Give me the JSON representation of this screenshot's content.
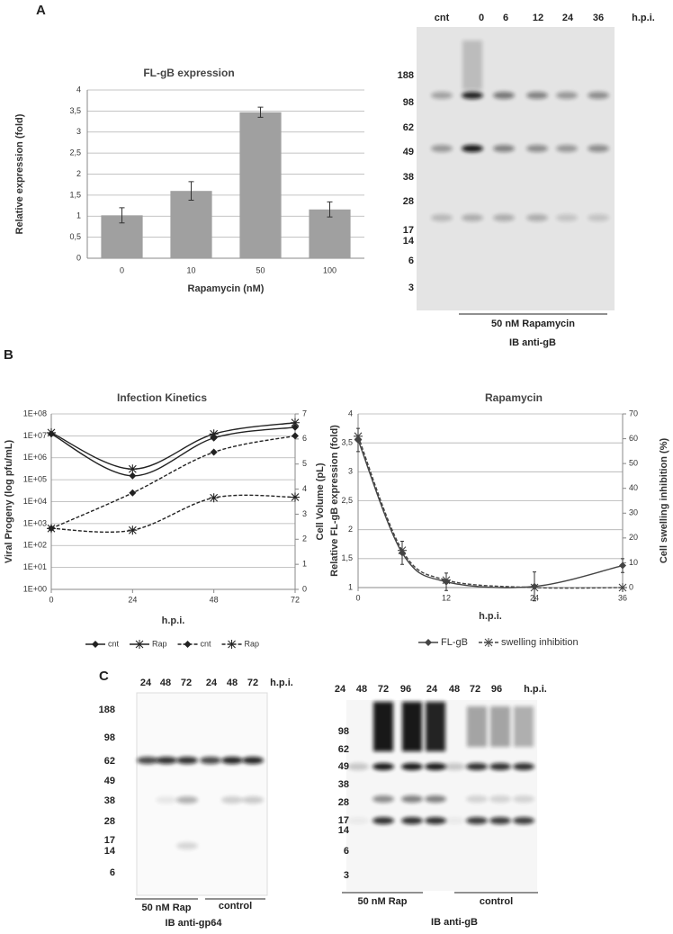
{
  "panel_labels": [
    "A",
    "B",
    "C"
  ],
  "chart_data": [
    {
      "type": "bar",
      "title": "FL-gB expression",
      "xlabel": "Rapamycin (nM)",
      "ylabel": "Relative expression (fold)",
      "categories": [
        "0",
        "10",
        "50",
        "100"
      ],
      "values": [
        1.02,
        1.6,
        3.47,
        1.16
      ],
      "errors": [
        0.18,
        0.22,
        0.12,
        0.18
      ],
      "color": "#a0a0a0",
      "ylim": [
        0,
        4
      ],
      "yticks": [
        0,
        {
          "value": 0.5,
          "label": "0,5"
        },
        1,
        {
          "value": 1.5,
          "label": "1,5"
        },
        2,
        {
          "value": 2.5,
          "label": "2,5"
        },
        3,
        {
          "value": 3.5,
          "label": "3,5"
        },
        4
      ],
      "grid": true
    },
    {
      "type": "line",
      "title": "Infection Kinetics",
      "xlabel": "h.p.i.",
      "ylabel": "Viral Progeny (log pfu/mL)",
      "y2label": "Cell Volume (pL)",
      "x": [
        0,
        24,
        48,
        72
      ],
      "xlim": [
        0,
        72
      ],
      "xticks": [
        0,
        24,
        48,
        72
      ],
      "yscale": "log",
      "ylim": [
        1,
        100000000
      ],
      "yticks": [
        {
          "value": 1,
          "label": "1E+00"
        },
        {
          "value": 10,
          "label": "1E+01"
        },
        {
          "value": 100,
          "label": "1E+02"
        },
        {
          "value": 1000,
          "label": "1E+03"
        },
        {
          "value": 10000,
          "label": "1E+04"
        },
        {
          "value": 100000,
          "label": "1E+05"
        },
        {
          "value": 1000000,
          "label": "1E+06"
        },
        {
          "value": 10000000,
          "label": "1E+07"
        },
        {
          "value": 100000000,
          "label": "1E+08"
        }
      ],
      "y2lim": [
        0,
        7
      ],
      "y2ticks": [
        0,
        1,
        2,
        3,
        4,
        5,
        6,
        7
      ],
      "grid": true,
      "legend": "bottom",
      "series": [
        {
          "name": "cnt",
          "color": "#222222",
          "marker": "diamond",
          "dashed": false,
          "axis": "y2",
          "values": [
            6.2,
            4.53,
            6.04,
            6.47
          ]
        },
        {
          "name": "Rap",
          "color": "#222222",
          "marker": "star",
          "dashed": false,
          "axis": "y2",
          "values": [
            6.25,
            4.8,
            6.2,
            6.65
          ]
        },
        {
          "name": "cnt",
          "color": "#222222",
          "marker": "diamond",
          "dashed": true,
          "values": [
            600,
            25000,
            1800000,
            10000000
          ]
        },
        {
          "name": "Rap",
          "color": "#222222",
          "marker": "star",
          "dashed": true,
          "values": [
            600,
            500,
            15000,
            16000
          ]
        }
      ]
    },
    {
      "type": "line",
      "title": "Rapamycin",
      "xlabel": "h.p.i.",
      "ylabel": "Relative FL-gB expression (fold)",
      "y2label": "Cell swelling inhibition (%)",
      "x": [
        0,
        6,
        12,
        24,
        36
      ],
      "xlim": [
        0,
        36
      ],
      "xticks": [
        0,
        12,
        24,
        36
      ],
      "ylim": [
        1,
        4
      ],
      "yticks": [
        1,
        {
          "value": 1.5,
          "label": "1,5"
        },
        2,
        {
          "value": 2.5,
          "label": "2,5"
        },
        3,
        {
          "value": 3.5,
          "label": "3,5"
        },
        4
      ],
      "y2lim": [
        0,
        70
      ],
      "y2ticks": [
        0,
        10,
        20,
        30,
        40,
        50,
        60,
        70
      ],
      "grid": true,
      "legend": "bottom",
      "series": [
        {
          "name": "FL-gB",
          "color": "#444444",
          "marker": "diamond",
          "dashed": false,
          "values": [
            3.55,
            1.6,
            1.1,
            1.02,
            1.38
          ],
          "errors": [
            0.2,
            0.2,
            0.15,
            0.25,
            0.12
          ]
        },
        {
          "name": "swelling inhibition",
          "color": "#444444",
          "marker": "star",
          "dashed": true,
          "axis": "y2",
          "values": [
            61,
            15,
            3,
            0,
            0
          ]
        }
      ]
    }
  ],
  "blots": [
    {
      "lanes": [
        "cnt",
        "0",
        "6",
        "12",
        "24",
        "36",
        "h.p.i."
      ],
      "markers": [
        "188",
        "98",
        "62",
        "49",
        "38",
        "28",
        "17",
        "14",
        "6",
        "3"
      ],
      "brackets": [
        "50 nM Rapamycin"
      ],
      "caption": "IB anti-gB"
    },
    {
      "lanes": [
        "24",
        "48",
        "72",
        "24",
        "48",
        "72",
        "h.p.i."
      ],
      "markers": [
        "188",
        "98",
        "62",
        "49",
        "38",
        "28",
        "17",
        "14",
        "6"
      ],
      "brackets": [
        "50 nM Rap",
        "control"
      ],
      "caption": "IB anti-gp64"
    },
    {
      "lanes": [
        "24",
        "48",
        "72",
        "96",
        "24",
        "48",
        "72",
        "96",
        "h.p.i."
      ],
      "markers": [
        "98",
        "62",
        "49",
        "38",
        "28",
        "17",
        "14",
        "6",
        "3"
      ],
      "brackets": [
        "50 nM Rap",
        "control"
      ],
      "caption": "IB anti-gB"
    }
  ]
}
